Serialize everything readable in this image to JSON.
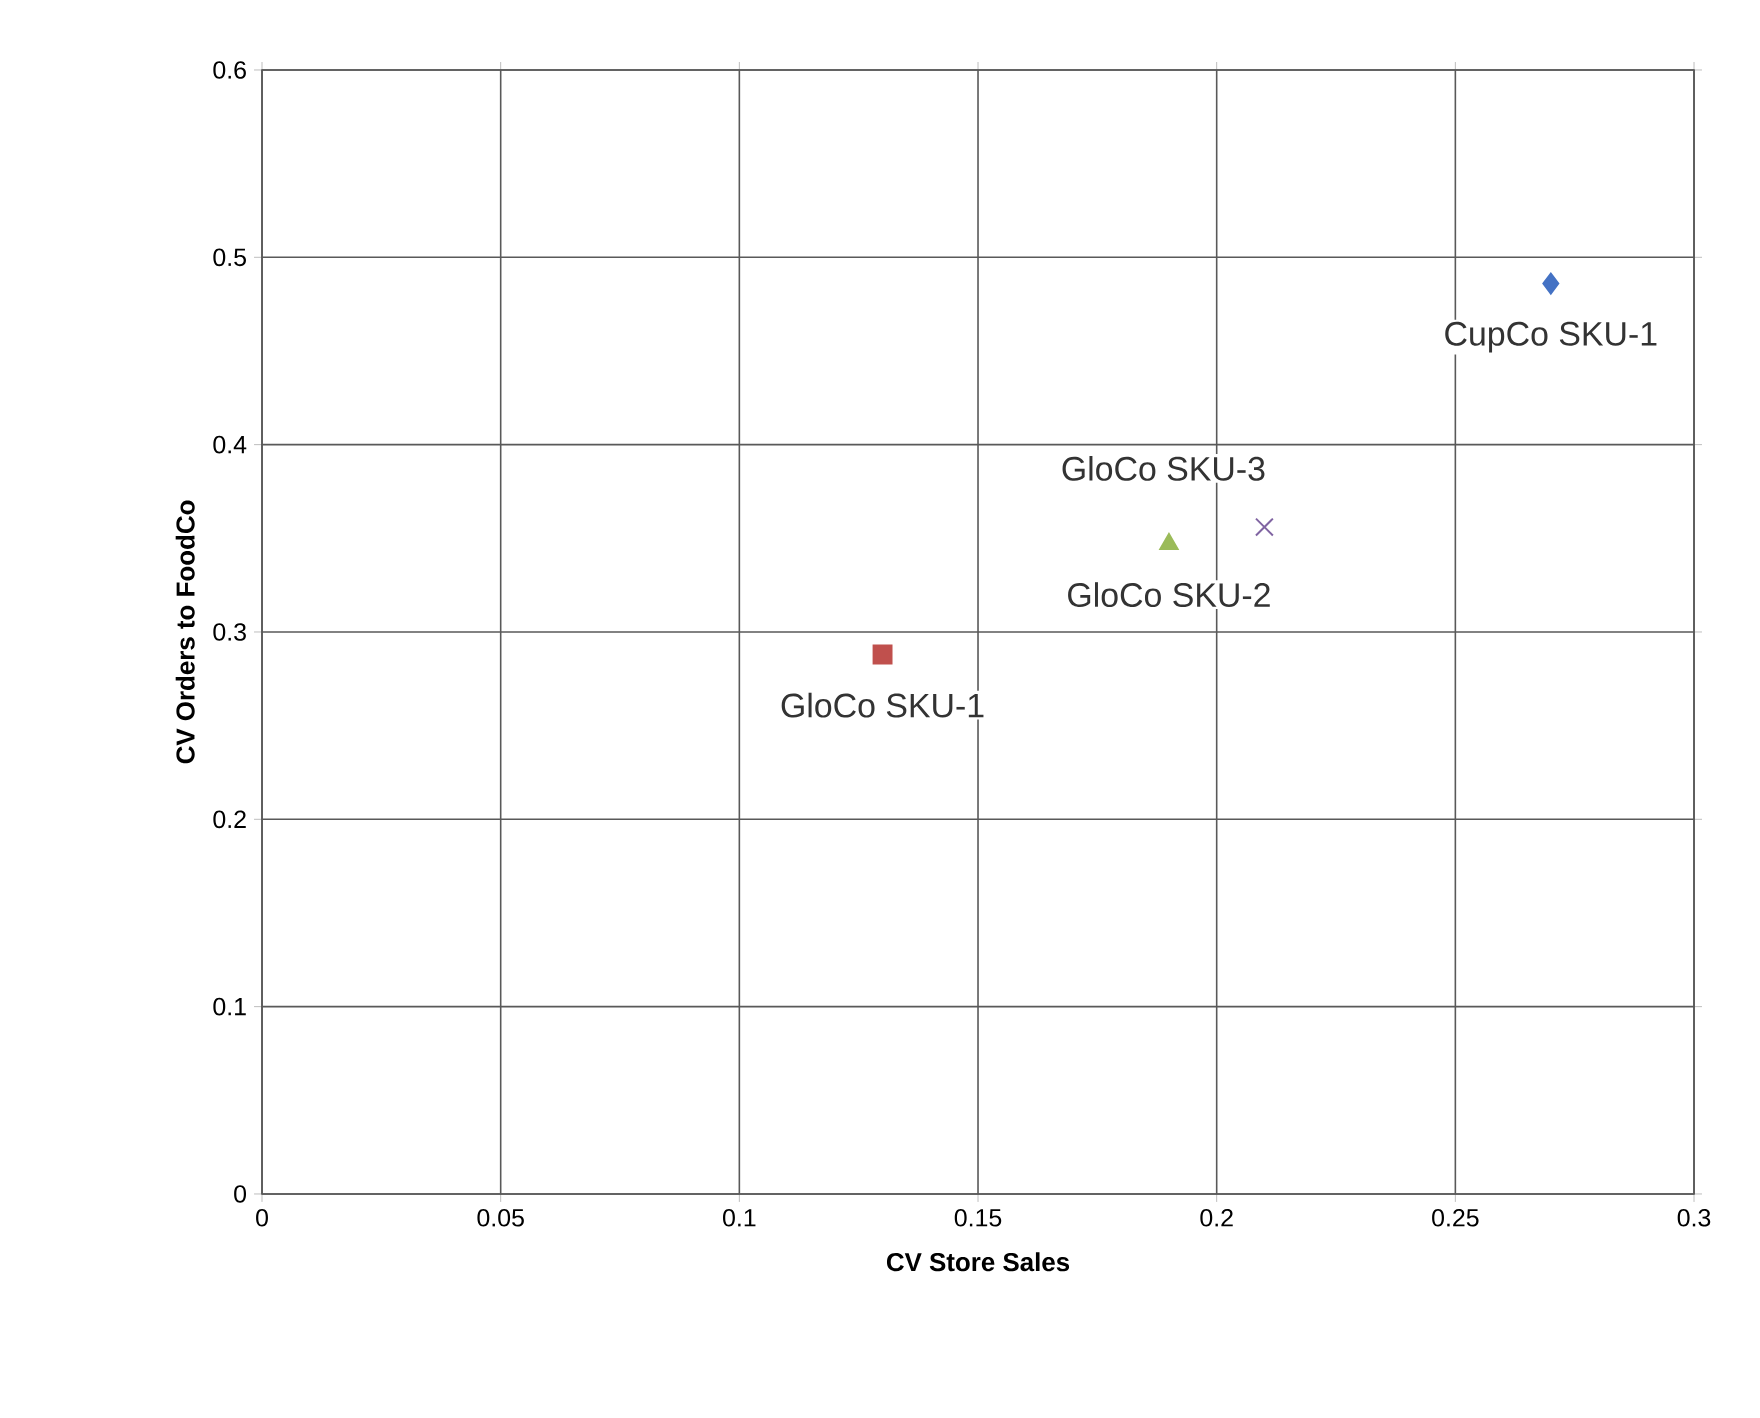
{
  "chart_data": {
    "type": "scatter",
    "xlabel": "CV Store Sales",
    "ylabel": "CV Orders to FoodCo",
    "xlim": [
      0,
      0.3
    ],
    "xticks": [
      0,
      0.05,
      0.1,
      0.15,
      0.2,
      0.25,
      0.3
    ],
    "ylim": [
      0,
      0.6
    ],
    "yticks": [
      0,
      0.1,
      0.2,
      0.3,
      0.4,
      0.5,
      0.6
    ],
    "grid": true,
    "series": [
      {
        "name": "CupCo SKU-1",
        "color": "#4472c4",
        "marker": "diamond",
        "x": [
          0.27
        ],
        "values": [
          0.486
        ]
      },
      {
        "name": "GloCo SKU-1",
        "color": "#c0504d",
        "marker": "square",
        "x": [
          0.13
        ],
        "values": [
          0.288
        ]
      },
      {
        "name": "GloCo SKU-2",
        "color": "#9bbb59",
        "marker": "triangle",
        "x": [
          0.19
        ],
        "values": [
          0.347
        ]
      },
      {
        "name": "GloCo SKU-3",
        "color": "#8064a2",
        "marker": "cross",
        "x": [
          0.21
        ],
        "values": [
          0.356
        ]
      }
    ]
  }
}
